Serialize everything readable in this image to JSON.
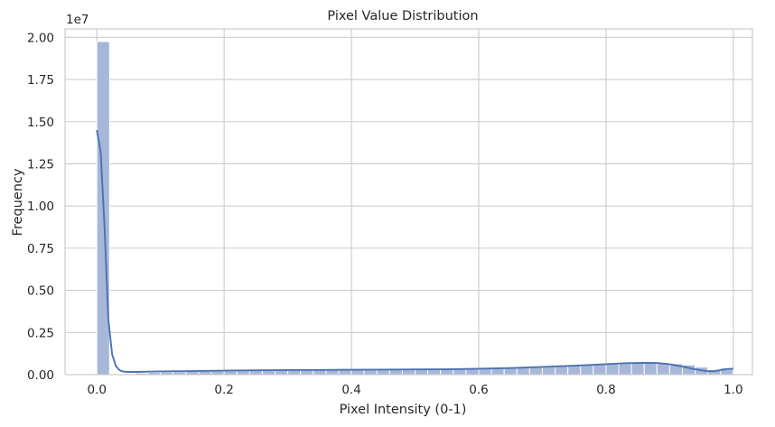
{
  "chart_data": {
    "type": "bar",
    "title": "Pixel Value Distribution",
    "xlabel": "Pixel Intensity (0-1)",
    "ylabel": "Frequency",
    "y_offset_text": "1e7",
    "xlim": [
      -0.05,
      1.03
    ],
    "ylim": [
      0,
      20500000
    ],
    "x_ticks": [
      0.0,
      0.2,
      0.4,
      0.6,
      0.8,
      1.0
    ],
    "x_tick_labels": [
      "0.0",
      "0.2",
      "0.4",
      "0.6",
      "0.8",
      "1.0"
    ],
    "y_ticks": [
      0,
      2500000,
      5000000,
      7500000,
      10000000,
      12500000,
      15000000,
      17500000,
      20000000
    ],
    "y_tick_labels": [
      "0.00",
      "0.25",
      "0.50",
      "0.75",
      "1.00",
      "1.25",
      "1.50",
      "1.75",
      "2.00"
    ],
    "grid": true,
    "bin_width": 0.02,
    "bins": {
      "x_start": [
        0.0,
        0.02,
        0.04,
        0.06,
        0.08,
        0.1,
        0.12,
        0.14,
        0.16,
        0.18,
        0.2,
        0.22,
        0.24,
        0.26,
        0.28,
        0.3,
        0.32,
        0.34,
        0.36,
        0.38,
        0.4,
        0.42,
        0.44,
        0.46,
        0.48,
        0.5,
        0.52,
        0.54,
        0.56,
        0.58,
        0.6,
        0.62,
        0.64,
        0.66,
        0.68,
        0.7,
        0.72,
        0.74,
        0.76,
        0.78,
        0.8,
        0.82,
        0.84,
        0.86,
        0.88,
        0.9,
        0.92,
        0.94,
        0.96,
        0.98
      ],
      "values": [
        19750000,
        50000,
        60000,
        100000,
        130000,
        150000,
        170000,
        190000,
        200000,
        210000,
        230000,
        240000,
        250000,
        260000,
        270000,
        280000,
        290000,
        290000,
        300000,
        300000,
        300000,
        310000,
        310000,
        320000,
        320000,
        320000,
        330000,
        340000,
        340000,
        350000,
        360000,
        380000,
        400000,
        420000,
        450000,
        480000,
        510000,
        540000,
        570000,
        600000,
        630000,
        660000,
        680000,
        690000,
        680000,
        650000,
        580000,
        450000,
        300000,
        400000
      ]
    },
    "series": [
      {
        "type": "kde-line",
        "x": [
          0.0,
          0.006,
          0.012,
          0.018,
          0.024,
          0.03,
          0.036,
          0.042,
          0.05,
          0.06,
          0.08,
          0.1,
          0.15,
          0.2,
          0.25,
          0.3,
          0.35,
          0.4,
          0.45,
          0.5,
          0.55,
          0.6,
          0.65,
          0.7,
          0.75,
          0.8,
          0.83,
          0.86,
          0.88,
          0.9,
          0.92,
          0.94,
          0.96,
          0.97,
          0.98,
          0.99,
          1.0
        ],
        "values": [
          14500000,
          13200000,
          8800000,
          3300000,
          1200000,
          500000,
          250000,
          180000,
          160000,
          160000,
          180000,
          190000,
          210000,
          240000,
          260000,
          270000,
          280000,
          290000,
          300000,
          310000,
          320000,
          350000,
          390000,
          460000,
          530000,
          620000,
          680000,
          700000,
          690000,
          620000,
          480000,
          320000,
          200000,
          210000,
          270000,
          330000,
          360000
        ]
      }
    ],
    "colors": {
      "bar": "#a6b7d8",
      "bar_edge": "#ffffff",
      "line": "#4c72b0",
      "grid": "#cccccc",
      "spine": "#cccccc",
      "text": "#262626"
    }
  }
}
